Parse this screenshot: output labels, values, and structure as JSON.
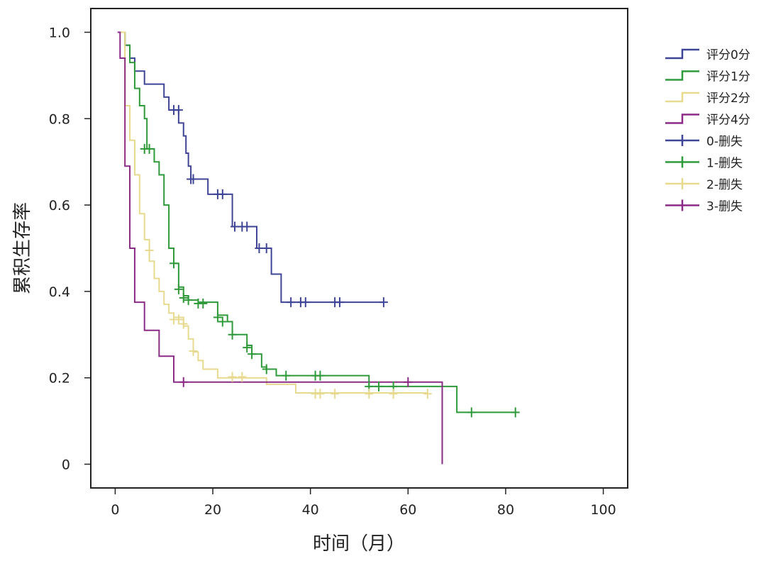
{
  "chart_data": {
    "type": "line",
    "subtype": "kaplan-meier step",
    "title": "",
    "xlabel": "时间（月）",
    "ylabel": "累积生存率",
    "xlim": [
      -5,
      105
    ],
    "ylim": [
      -0.055,
      1.055
    ],
    "x_ticks": [
      0,
      20,
      40,
      60,
      80,
      100
    ],
    "x_tick_labels": [
      "0",
      "20",
      "40",
      "60",
      "80",
      "100"
    ],
    "y_ticks": [
      0,
      0.2,
      0.4,
      0.6,
      0.8,
      1.0
    ],
    "y_tick_labels": [
      "0",
      "0.2",
      "0.4",
      "0.6",
      "0.8",
      "1.0"
    ],
    "grid": false,
    "legend_position": "right",
    "series": [
      {
        "name": "评分0分",
        "censor_label": "0-删失",
        "color": "#3f4596",
        "steps": [
          [
            1,
            1.0
          ],
          [
            2,
            0.97
          ],
          [
            3,
            0.94
          ],
          [
            4,
            0.91
          ],
          [
            6,
            0.88
          ],
          [
            10,
            0.85
          ],
          [
            11,
            0.82
          ],
          [
            13,
            0.79
          ],
          [
            14,
            0.76
          ],
          [
            14.5,
            0.72
          ],
          [
            15,
            0.69
          ],
          [
            15.5,
            0.66
          ],
          [
            19,
            0.625
          ],
          [
            24,
            0.55
          ],
          [
            29,
            0.5
          ],
          [
            32,
            0.44
          ],
          [
            34,
            0.375
          ],
          [
            55,
            0.375
          ]
        ],
        "censored": [
          [
            12,
            0.82
          ],
          [
            13,
            0.82
          ],
          [
            15.5,
            0.66
          ],
          [
            16,
            0.66
          ],
          [
            21,
            0.625
          ],
          [
            22,
            0.625
          ],
          [
            24.5,
            0.55
          ],
          [
            26,
            0.55
          ],
          [
            27,
            0.55
          ],
          [
            29.5,
            0.5
          ],
          [
            31,
            0.5
          ],
          [
            36,
            0.375
          ],
          [
            38,
            0.375
          ],
          [
            39,
            0.375
          ],
          [
            45,
            0.375
          ],
          [
            46,
            0.375
          ],
          [
            55,
            0.375
          ]
        ]
      },
      {
        "name": "评分1分",
        "censor_label": "1-删失",
        "color": "#2f9a3a",
        "steps": [
          [
            0.5,
            1.0
          ],
          [
            2,
            0.97
          ],
          [
            3,
            0.93
          ],
          [
            4,
            0.87
          ],
          [
            5,
            0.83
          ],
          [
            6,
            0.8
          ],
          [
            6.5,
            0.73
          ],
          [
            8,
            0.7
          ],
          [
            9,
            0.67
          ],
          [
            10,
            0.6
          ],
          [
            11,
            0.5
          ],
          [
            12,
            0.465
          ],
          [
            13,
            0.41
          ],
          [
            14,
            0.39
          ],
          [
            15,
            0.38
          ],
          [
            17,
            0.375
          ],
          [
            21,
            0.345
          ],
          [
            23,
            0.33
          ],
          [
            24,
            0.3
          ],
          [
            27,
            0.275
          ],
          [
            28,
            0.255
          ],
          [
            30,
            0.225
          ],
          [
            31,
            0.22
          ],
          [
            33,
            0.205
          ],
          [
            52,
            0.18
          ],
          [
            70,
            0.12
          ],
          [
            82,
            0.12
          ]
        ],
        "censored": [
          [
            6,
            0.73
          ],
          [
            7,
            0.73
          ],
          [
            12,
            0.465
          ],
          [
            13,
            0.405
          ],
          [
            14,
            0.385
          ],
          [
            15,
            0.38
          ],
          [
            17,
            0.372
          ],
          [
            18,
            0.372
          ],
          [
            21,
            0.34
          ],
          [
            22,
            0.33
          ],
          [
            24,
            0.3
          ],
          [
            27,
            0.27
          ],
          [
            28,
            0.255
          ],
          [
            31,
            0.22
          ],
          [
            35,
            0.205
          ],
          [
            41,
            0.205
          ],
          [
            42,
            0.205
          ],
          [
            52,
            0.18
          ],
          [
            54,
            0.18
          ],
          [
            57,
            0.18
          ],
          [
            73,
            0.12
          ],
          [
            82,
            0.12
          ]
        ]
      },
      {
        "name": "评分2分",
        "censor_label": "2-删失",
        "color": "#e7da8e",
        "steps": [
          [
            1,
            1.0
          ],
          [
            2,
            0.83
          ],
          [
            3,
            0.75
          ],
          [
            4,
            0.67
          ],
          [
            5,
            0.58
          ],
          [
            6,
            0.52
          ],
          [
            7,
            0.47
          ],
          [
            8,
            0.43
          ],
          [
            9,
            0.4
          ],
          [
            10,
            0.37
          ],
          [
            11,
            0.35
          ],
          [
            12,
            0.34
          ],
          [
            14,
            0.32
          ],
          [
            15,
            0.29
          ],
          [
            16,
            0.26
          ],
          [
            17,
            0.24
          ],
          [
            18,
            0.22
          ],
          [
            21,
            0.2
          ],
          [
            31,
            0.185
          ],
          [
            37,
            0.165
          ],
          [
            64,
            0.165
          ]
        ],
        "censored": [
          [
            7,
            0.495
          ],
          [
            12,
            0.335
          ],
          [
            13,
            0.335
          ],
          [
            14,
            0.325
          ],
          [
            16,
            0.262
          ],
          [
            24,
            0.202
          ],
          [
            26,
            0.202
          ],
          [
            41,
            0.163
          ],
          [
            42,
            0.163
          ],
          [
            45,
            0.163
          ],
          [
            52,
            0.163
          ],
          [
            57,
            0.163
          ],
          [
            64,
            0.163
          ]
        ]
      },
      {
        "name": "评分4分",
        "censor_label": "3-删失",
        "color": "#8b2b86",
        "steps": [
          [
            0.5,
            1.0
          ],
          [
            1,
            0.94
          ],
          [
            2,
            0.69
          ],
          [
            3,
            0.5
          ],
          [
            4,
            0.375
          ],
          [
            6,
            0.31
          ],
          [
            9,
            0.25
          ],
          [
            12,
            0.19
          ],
          [
            67,
            0.0
          ]
        ],
        "censored": [
          [
            14,
            0.19
          ],
          [
            60,
            0.19
          ]
        ]
      }
    ]
  }
}
